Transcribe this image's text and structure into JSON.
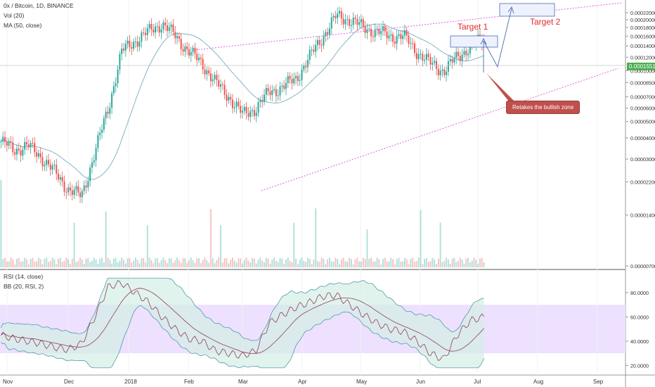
{
  "header": {
    "symbol_line": "0x / Bitcoin, 1D, BINANCE",
    "vol_line": "Vol (20)",
    "ma_line": "MA (50, close)",
    "rsi_line": "RSI (14, close)",
    "bb_line": "BB (20, RSI, 2)"
  },
  "annotations": {
    "target1": "Target 1",
    "target2": "Target 2",
    "callout": "Retakes the bullish zone",
    "last_price": "0.00015517"
  },
  "colors": {
    "up": "#26a69a",
    "down": "#ef5350",
    "ma": "#3f8ea5",
    "rsi": "#8e3f5a",
    "bb_fill": "#d3eee4",
    "rsi_band": "#eee0ff",
    "channel": "#e05fe0",
    "arrow": "#4a6ab2",
    "target_text": "#e02b2b"
  },
  "chart_data": [
    {
      "type": "candlestick",
      "title": "0x / Bitcoin, 1D, BINANCE",
      "x_ticks": [
        "Nov",
        "Dec",
        "2018",
        "Feb",
        "Mar",
        "Apr",
        "May",
        "Jun",
        "Jul",
        "Aug",
        "Sep"
      ],
      "y_ticks": [
        "0.00022000",
        "0.00020000",
        "0.00018000",
        "0.00016000",
        "0.00014000",
        "0.00012000",
        "0.00010000",
        "0.00008500",
        "0.00007000",
        "0.00006000",
        "0.00005000",
        "0.00004000",
        "0.00003000",
        "0.00002200",
        "0.00001400",
        "0.00000700"
      ],
      "y_scale": "log",
      "current_price": 0.00015517,
      "close_series": [
        3.8e-05,
        3.4e-05,
        3.6e-05,
        3.1e-05,
        2.5e-05,
        2e-05,
        1.8e-05,
        3.3e-05,
        6e-05,
        0.00013,
        0.00015,
        0.00017,
        0.00019,
        0.00016,
        0.00013,
        0.00011,
        8.5e-05,
        7e-05,
        5.5e-05,
        6e-05,
        7.5e-05,
        8e-05,
        9e-05,
        0.00012,
        0.00016,
        0.00021,
        0.0002,
        0.00018,
        0.00017,
        0.00016,
        0.00016,
        0.00013,
        0.00011,
        0.0001,
        0.00012,
        0.00014,
        0.000155
      ],
      "ma_name": "MA (50, close)",
      "volume_name": "Vol (20)"
    },
    {
      "type": "line",
      "title": "RSI (14, close)",
      "bands_name": "BB (20, RSI, 2)",
      "y_ticks": [
        "80.0000",
        "60.0000",
        "40.0000",
        "20.0000"
      ],
      "ylim": [
        15,
        95
      ],
      "band_range": [
        30,
        70
      ],
      "rsi_series": [
        45,
        42,
        40,
        38,
        35,
        33,
        38,
        60,
        85,
        88,
        80,
        72,
        60,
        50,
        42,
        40,
        32,
        30,
        28,
        32,
        55,
        62,
        68,
        72,
        77,
        78,
        70,
        62,
        55,
        50,
        48,
        40,
        30,
        25,
        45,
        57,
        60
      ]
    }
  ]
}
